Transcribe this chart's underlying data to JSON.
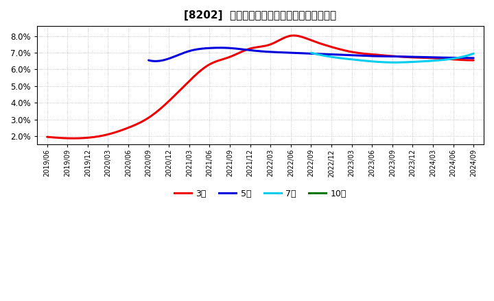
{
  "title": "[8202]  当期純利益マージンの標準偏差の推移",
  "title_fontsize": 11,
  "background_color": "#ffffff",
  "plot_bg_color": "#ffffff",
  "grid_color": "#bbbbbb",
  "ylim": [
    1.5,
    8.6
  ],
  "yticks": [
    2.0,
    3.0,
    4.0,
    5.0,
    6.0,
    7.0,
    8.0
  ],
  "legend": [
    {
      "label": "3年",
      "color": "#ee0000"
    },
    {
      "label": "5年",
      "color": "#0000dd"
    },
    {
      "label": "7年",
      "color": "#00ccee"
    },
    {
      "label": "10年",
      "color": "#007700"
    }
  ],
  "x_tick_labels": [
    "2019/06",
    "2019/09",
    "2019/12",
    "2020/03",
    "2020/06",
    "2020/09",
    "2020/12",
    "2021/03",
    "2021/06",
    "2021/09",
    "2021/12",
    "2022/03",
    "2022/06",
    "2022/09",
    "2022/12",
    "2023/03",
    "2023/06",
    "2023/09",
    "2023/12",
    "2024/03",
    "2024/06",
    "2024/09"
  ],
  "series_3yr": {
    "color": "#ee0000",
    "lw": 2.2,
    "x": [
      0,
      1,
      2,
      3,
      4,
      5,
      6,
      7,
      8,
      9,
      10,
      11,
      12,
      13,
      14,
      15,
      16,
      17,
      18,
      19,
      20,
      21
    ],
    "y": [
      1.95,
      1.87,
      1.9,
      2.1,
      2.5,
      3.1,
      4.1,
      5.3,
      6.3,
      6.75,
      7.25,
      7.5,
      8.02,
      7.75,
      7.35,
      7.05,
      6.9,
      6.8,
      6.72,
      6.68,
      6.6,
      6.55
    ]
  },
  "series_5yr": {
    "color": "#0000dd",
    "lw": 2.2,
    "x": [
      5,
      6,
      7,
      8,
      9,
      10,
      11,
      12,
      13,
      14,
      15,
      16,
      17,
      18,
      19,
      20,
      21
    ],
    "y": [
      6.55,
      6.65,
      7.1,
      7.28,
      7.28,
      7.15,
      7.05,
      7.0,
      6.95,
      6.9,
      6.85,
      6.8,
      6.78,
      6.75,
      6.72,
      6.7,
      6.68
    ]
  },
  "series_7yr": {
    "color": "#00ccee",
    "lw": 2.2,
    "x": [
      13,
      14,
      15,
      16,
      17,
      18,
      19,
      20,
      21
    ],
    "y": [
      7.0,
      6.75,
      6.6,
      6.48,
      6.42,
      6.45,
      6.52,
      6.65,
      6.95
    ]
  },
  "series_10yr": {
    "color": "#007700",
    "lw": 2.2,
    "x": [],
    "y": []
  }
}
